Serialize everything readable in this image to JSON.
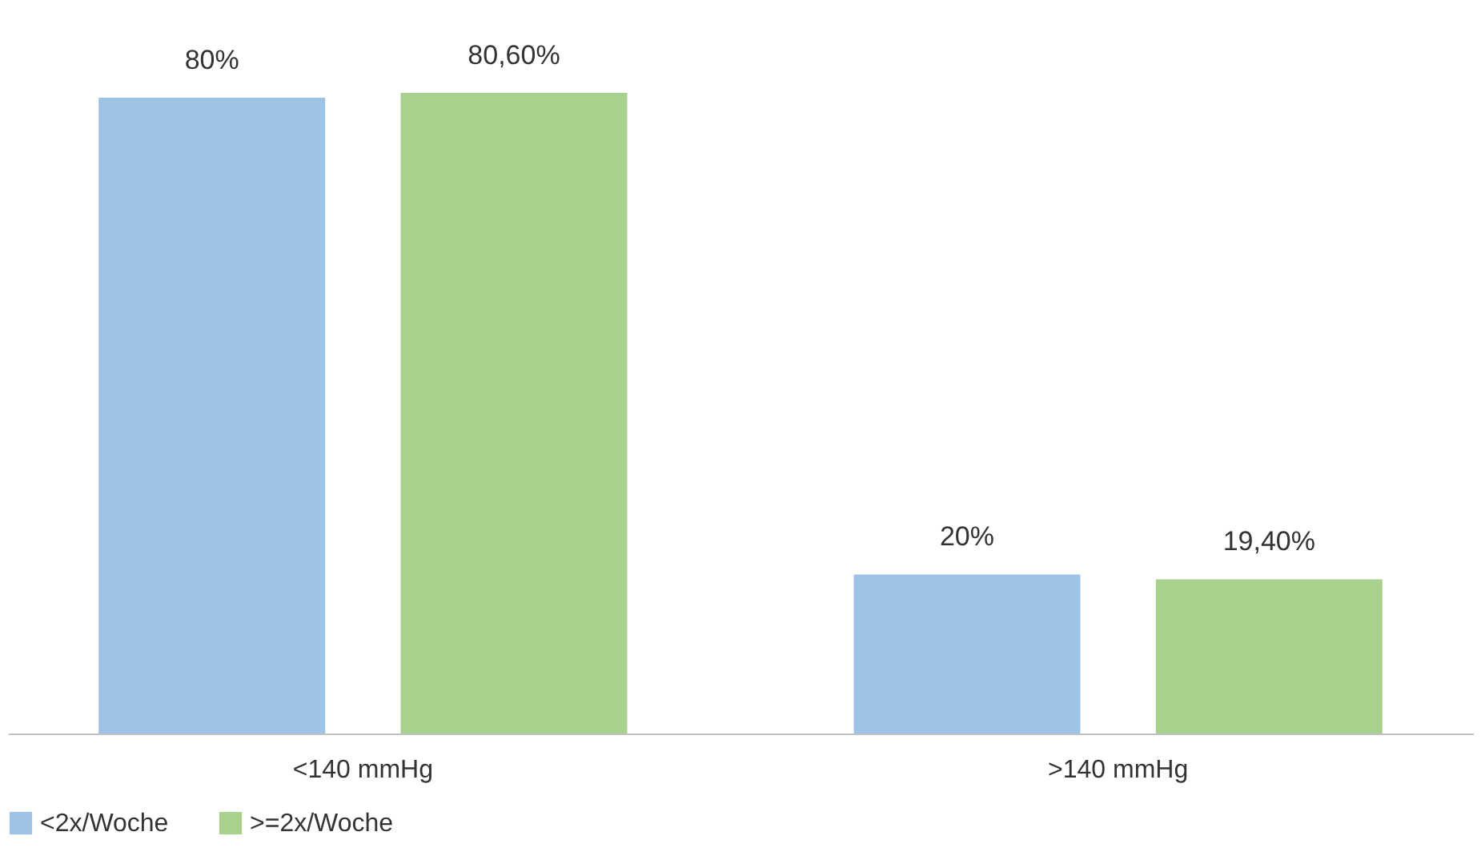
{
  "chart_data": {
    "type": "bar",
    "categories": [
      "<140 mmHg",
      ">140 mmHg"
    ],
    "series": [
      {
        "name": "<2x/Woche",
        "color": "#9dc3e6",
        "values": [
          80,
          20
        ],
        "value_labels": [
          "80%",
          "20%"
        ]
      },
      {
        "name": ">=2x/Woche",
        "color": "#a9d18e",
        "values": [
          80.6,
          19.4
        ],
        "value_labels": [
          "80,60%",
          "19,40%"
        ]
      }
    ],
    "legend": "bottom",
    "grid": false
  }
}
